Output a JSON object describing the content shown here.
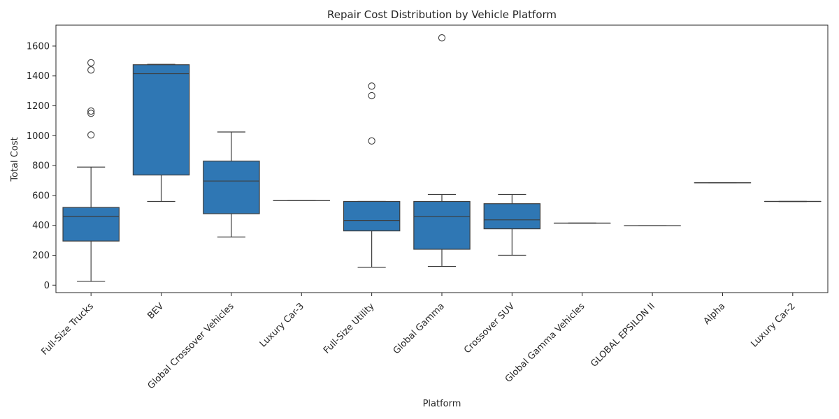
{
  "chart_data": {
    "type": "box",
    "title": "Repair Cost Distribution by Vehicle Platform",
    "xlabel": "Platform",
    "ylabel": "Total Cost",
    "ylim": [
      -50,
      1740
    ],
    "yticks": [
      0,
      200,
      400,
      600,
      800,
      1000,
      1200,
      1400,
      1600
    ],
    "box_color": "#2f77b4",
    "line_color": "#3d3d3d",
    "grid": false,
    "categories": [
      "Full-Size Trucks",
      "BEV",
      "Global Crossover Vehicles",
      "Luxury Car-3",
      "Full-Size Utility",
      "Global Gamma",
      "Crossover SUV",
      "Global Gamma Vehicles",
      "GLOBAL EPSILON II",
      "Alpha",
      "Luxury Car-2"
    ],
    "boxes": [
      {
        "whisker_low": 25,
        "q1": 295,
        "median": 460,
        "q3": 520,
        "whisker_high": 790,
        "outliers": [
          1005,
          1150,
          1165,
          1440,
          1488
        ]
      },
      {
        "whisker_low": 560,
        "q1": 737,
        "median": 1415,
        "q3": 1475,
        "whisker_high": 1478,
        "outliers": []
      },
      {
        "whisker_low": 322,
        "q1": 478,
        "median": 697,
        "q3": 830,
        "whisker_high": 1025,
        "outliers": []
      },
      {
        "whisker_low": 565,
        "q1": 565,
        "median": 565,
        "q3": 565,
        "whisker_high": 565,
        "outliers": []
      },
      {
        "whisker_low": 120,
        "q1": 363,
        "median": 433,
        "q3": 560,
        "whisker_high": 560,
        "outliers": [
          965,
          1268,
          1332
        ]
      },
      {
        "whisker_low": 125,
        "q1": 240,
        "median": 458,
        "q3": 560,
        "whisker_high": 607,
        "outliers": [
          1655
        ]
      },
      {
        "whisker_low": 200,
        "q1": 377,
        "median": 437,
        "q3": 545,
        "whisker_high": 607,
        "outliers": []
      },
      {
        "whisker_low": 415,
        "q1": 415,
        "median": 415,
        "q3": 415,
        "whisker_high": 415,
        "outliers": []
      },
      {
        "whisker_low": 397,
        "q1": 397,
        "median": 397,
        "q3": 397,
        "whisker_high": 397,
        "outliers": []
      },
      {
        "whisker_low": 685,
        "q1": 685,
        "median": 685,
        "q3": 685,
        "whisker_high": 685,
        "outliers": []
      },
      {
        "whisker_low": 560,
        "q1": 560,
        "median": 560,
        "q3": 560,
        "whisker_high": 560,
        "outliers": []
      }
    ]
  }
}
